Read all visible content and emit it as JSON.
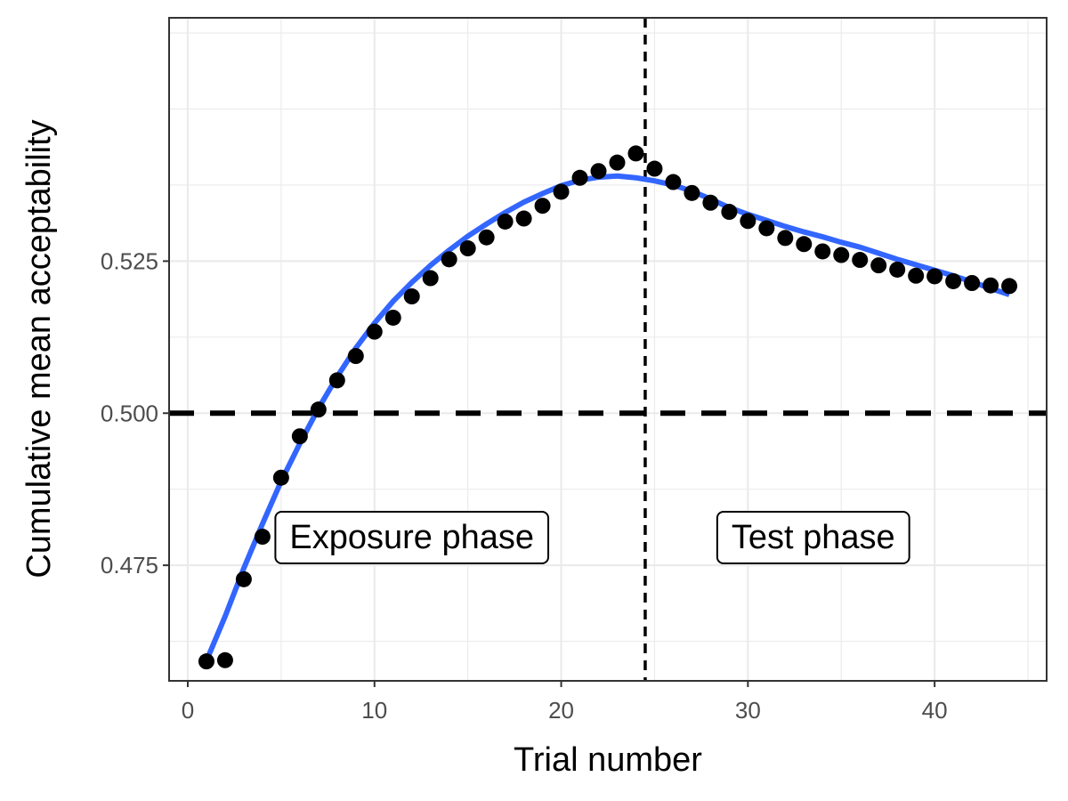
{
  "chart_data": {
    "type": "scatter",
    "title": "",
    "xlabel": "Trial number",
    "ylabel": "Cumulative mean acceptability",
    "xlim": [
      -1,
      46
    ],
    "ylim": [
      0.456,
      0.565
    ],
    "x_ticks": [
      0,
      10,
      20,
      30,
      40
    ],
    "x_tick_labels": [
      "0",
      "10",
      "20",
      "30",
      "40"
    ],
    "y_ticks": [
      0.475,
      0.5,
      0.525
    ],
    "y_tick_labels": [
      "0.475",
      "0.500",
      "0.525"
    ],
    "grid": true,
    "legend": "none",
    "hline": 0.5,
    "vline": 24.5,
    "annotations": [
      {
        "text": "Exposure phase",
        "x": 12,
        "y": 0.4797
      },
      {
        "text": "Test phase",
        "x": 33.5,
        "y": 0.4797
      }
    ],
    "series": [
      {
        "kind": "points",
        "color": "#000000",
        "x": [
          1,
          2,
          3,
          4,
          5,
          6,
          7,
          8,
          9,
          10,
          11,
          12,
          13,
          14,
          15,
          16,
          17,
          18,
          19,
          20,
          21,
          22,
          23,
          24,
          25,
          26,
          27,
          28,
          29,
          30,
          31,
          32,
          33,
          34,
          35,
          36,
          37,
          38,
          39,
          40,
          41,
          42,
          43,
          44
        ],
        "y": [
          0.4592,
          0.4594,
          0.4727,
          0.4797,
          0.4894,
          0.4962,
          0.5006,
          0.5054,
          0.5094,
          0.5134,
          0.5157,
          0.5192,
          0.5222,
          0.5253,
          0.5271,
          0.5289,
          0.5315,
          0.532,
          0.5341,
          0.5364,
          0.5387,
          0.5398,
          0.5412,
          0.5427,
          0.5402,
          0.538,
          0.5362,
          0.5346,
          0.5331,
          0.5316,
          0.5304,
          0.5288,
          0.5278,
          0.5266,
          0.526,
          0.5252,
          0.5243,
          0.5236,
          0.5226,
          0.5225,
          0.5217,
          0.5214,
          0.521,
          0.5209
        ]
      },
      {
        "kind": "smooth",
        "color": "#3366ff",
        "x": [
          1,
          2,
          3,
          4,
          5,
          6,
          7,
          8,
          9,
          10,
          11,
          12,
          13,
          14,
          15,
          16,
          17,
          18,
          19,
          20,
          21,
          22,
          23,
          24,
          25,
          26,
          27,
          28,
          29,
          30,
          31,
          32,
          33,
          34,
          35,
          36,
          37,
          38,
          39,
          40,
          41,
          42,
          43,
          44
        ],
        "y": [
          0.4593,
          0.4666,
          0.4745,
          0.4818,
          0.4888,
          0.495,
          0.5008,
          0.506,
          0.5107,
          0.5148,
          0.5184,
          0.5215,
          0.5243,
          0.5268,
          0.5291,
          0.5311,
          0.533,
          0.5347,
          0.5361,
          0.5374,
          0.5383,
          0.5388,
          0.539,
          0.5387,
          0.5382,
          0.5375,
          0.5365,
          0.5352,
          0.5338,
          0.5327,
          0.5317,
          0.5307,
          0.5298,
          0.529,
          0.5281,
          0.5273,
          0.5263,
          0.5253,
          0.5244,
          0.5235,
          0.5226,
          0.5216,
          0.5205,
          0.5195
        ]
      }
    ]
  }
}
